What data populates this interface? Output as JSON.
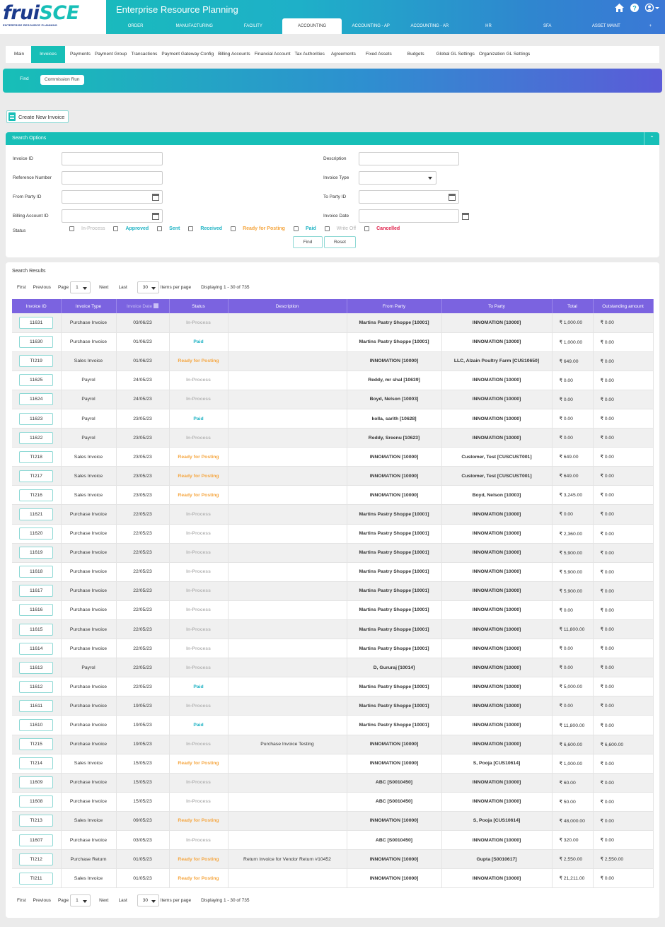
{
  "header": {
    "logo_text": "fruiSCE",
    "logo_sub": "ENTERPRISE RESOURCE PLANNING",
    "app_title": "Enterprise Resource Planning",
    "main_tabs": [
      "ORDER",
      "MANUFACTURING",
      "FACILITY",
      "ACCOUNTING",
      "ACCOUNTING - AP",
      "ACCOUNTING - AR",
      "HR",
      "SFA",
      "ASSET MAINT",
      "+"
    ],
    "active_tab": "ACCOUNTING"
  },
  "subnav": {
    "items": [
      "Main",
      "Invoices",
      "Payments",
      "Payment Group",
      "Transactions",
      "Payment Gateway Config",
      "Billing Accounts",
      "Financial Account",
      "Tax Authorities",
      "Agreements",
      "Fixed Assets",
      "Budgets",
      "Global GL Settings",
      "Organization GL Settings"
    ],
    "active": "Invoices"
  },
  "findbar": {
    "find": "Find",
    "commission_run": "Commission Run"
  },
  "create_invoice": "Create New Invoice",
  "search": {
    "title": "Search Options",
    "labels": {
      "invoice_id": "Invoice ID",
      "reference_number": "Reference Number",
      "from_party_id": "From Party ID",
      "billing_account_id": "Billing Account ID",
      "status": "Status",
      "description": "Description",
      "invoice_type": "Invoice Type",
      "to_party_id": "To Party ID",
      "invoice_date": "Invoice Date"
    },
    "statuses": [
      "In-Process",
      "Approved",
      "Sent",
      "Received",
      "Ready for Posting",
      "Paid",
      "Write Off",
      "Cancelled"
    ],
    "find_button": "Find",
    "reset_button": "Reset"
  },
  "results": {
    "title": "Search Results",
    "pager": {
      "first": "First",
      "previous": "Previous",
      "page_label": "Page",
      "page": "1",
      "next": "Next",
      "last": "Last",
      "per_page": "30",
      "items_per_page": "Items per page",
      "displaying": "Displaying 1 - 30 of 735"
    },
    "columns": [
      "Invoice ID",
      "Invoice Type",
      "Invoice Date",
      "Status",
      "Description",
      "From Party",
      "To Party",
      "Total",
      "Outstanding amount"
    ],
    "rows": [
      {
        "id": "11631",
        "type": "Purchase Invoice",
        "date": "03/06/23",
        "status": "In-Process",
        "desc": "",
        "from": "Martins Pastry Shoppe [10001]",
        "to": "INNOMATION [10000]",
        "total": "₹ 1,000.00",
        "outstanding": "₹ 0.00"
      },
      {
        "id": "11630",
        "type": "Purchase Invoice",
        "date": "01/06/23",
        "status": "Paid",
        "desc": "",
        "from": "Martins Pastry Shoppe [10001]",
        "to": "INNOMATION [10000]",
        "total": "₹ 1,000.00",
        "outstanding": "₹ 0.00"
      },
      {
        "id": "TI219",
        "type": "Sales Invoice",
        "date": "01/06/23",
        "status": "Ready for Posting",
        "desc": "",
        "from": "INNOMATION [10000]",
        "to": "LLC, Alzain Poultry Farm [CUS10650]",
        "total": "₹ 649.00",
        "outstanding": "₹ 0.00"
      },
      {
        "id": "11625",
        "type": "Payrol",
        "date": "24/05/23",
        "status": "In-Process",
        "desc": "",
        "from": "Reddy, mr shal [10639]",
        "to": "INNOMATION [10000]",
        "total": "₹ 0.00",
        "outstanding": "₹ 0.00"
      },
      {
        "id": "11624",
        "type": "Payrol",
        "date": "24/05/23",
        "status": "In-Process",
        "desc": "",
        "from": "Boyd, Nelson [10003]",
        "to": "INNOMATION [10000]",
        "total": "₹ 0.00",
        "outstanding": "₹ 0.00"
      },
      {
        "id": "11623",
        "type": "Payrol",
        "date": "23/05/23",
        "status": "Paid",
        "desc": "",
        "from": "kolla, sarith [10628]",
        "to": "INNOMATION [10000]",
        "total": "₹ 0.00",
        "outstanding": "₹ 0.00"
      },
      {
        "id": "11622",
        "type": "Payrol",
        "date": "23/05/23",
        "status": "In-Process",
        "desc": "",
        "from": "Reddy, Sreenu [10623]",
        "to": "INNOMATION [10000]",
        "total": "₹ 0.00",
        "outstanding": "₹ 0.00"
      },
      {
        "id": "TI218",
        "type": "Sales Invoice",
        "date": "23/05/23",
        "status": "Ready for Posting",
        "desc": "",
        "from": "INNOMATION [10000]",
        "to": "Customer, Test [CUSCUST001]",
        "total": "₹ 649.00",
        "outstanding": "₹ 0.00"
      },
      {
        "id": "TI217",
        "type": "Sales Invoice",
        "date": "23/05/23",
        "status": "Ready for Posting",
        "desc": "",
        "from": "INNOMATION [10000]",
        "to": "Customer, Test [CUSCUST001]",
        "total": "₹ 649.00",
        "outstanding": "₹ 0.00"
      },
      {
        "id": "TI216",
        "type": "Sales Invoice",
        "date": "23/05/23",
        "status": "Ready for Posting",
        "desc": "",
        "from": "INNOMATION [10000]",
        "to": "Boyd, Nelson [10003]",
        "total": "₹ 3,245.00",
        "outstanding": "₹ 0.00"
      },
      {
        "id": "11621",
        "type": "Purchase Invoice",
        "date": "22/05/23",
        "status": "In-Process",
        "desc": "",
        "from": "Martins Pastry Shoppe [10001]",
        "to": "INNOMATION [10000]",
        "total": "₹ 0.00",
        "outstanding": "₹ 0.00"
      },
      {
        "id": "11620",
        "type": "Purchase Invoice",
        "date": "22/05/23",
        "status": "In-Process",
        "desc": "",
        "from": "Martins Pastry Shoppe [10001]",
        "to": "INNOMATION [10000]",
        "total": "₹ 2,360.00",
        "outstanding": "₹ 0.00"
      },
      {
        "id": "11619",
        "type": "Purchase Invoice",
        "date": "22/05/23",
        "status": "In-Process",
        "desc": "",
        "from": "Martins Pastry Shoppe [10001]",
        "to": "INNOMATION [10000]",
        "total": "₹ 5,900.00",
        "outstanding": "₹ 0.00"
      },
      {
        "id": "11618",
        "type": "Purchase Invoice",
        "date": "22/05/23",
        "status": "In-Process",
        "desc": "",
        "from": "Martins Pastry Shoppe [10001]",
        "to": "INNOMATION [10000]",
        "total": "₹ 5,900.00",
        "outstanding": "₹ 0.00"
      },
      {
        "id": "11617",
        "type": "Purchase Invoice",
        "date": "22/05/23",
        "status": "In-Process",
        "desc": "",
        "from": "Martins Pastry Shoppe [10001]",
        "to": "INNOMATION [10000]",
        "total": "₹ 5,900.00",
        "outstanding": "₹ 0.00"
      },
      {
        "id": "11616",
        "type": "Purchase Invoice",
        "date": "22/05/23",
        "status": "In-Process",
        "desc": "",
        "from": "Martins Pastry Shoppe [10001]",
        "to": "INNOMATION [10000]",
        "total": "₹ 0.00",
        "outstanding": "₹ 0.00"
      },
      {
        "id": "11615",
        "type": "Purchase Invoice",
        "date": "22/05/23",
        "status": "In-Process",
        "desc": "",
        "from": "Martins Pastry Shoppe [10001]",
        "to": "INNOMATION [10000]",
        "total": "₹ 11,800.00",
        "outstanding": "₹ 0.00"
      },
      {
        "id": "11614",
        "type": "Purchase Invoice",
        "date": "22/05/23",
        "status": "In-Process",
        "desc": "",
        "from": "Martins Pastry Shoppe [10001]",
        "to": "INNOMATION [10000]",
        "total": "₹ 0.00",
        "outstanding": "₹ 0.00"
      },
      {
        "id": "11613",
        "type": "Payrol",
        "date": "22/05/23",
        "status": "In-Process",
        "desc": "",
        "from": "D, Gururaj [10014]",
        "to": "INNOMATION [10000]",
        "total": "₹ 0.00",
        "outstanding": "₹ 0.00"
      },
      {
        "id": "11612",
        "type": "Purchase Invoice",
        "date": "22/05/23",
        "status": "Paid",
        "desc": "",
        "from": "Martins Pastry Shoppe [10001]",
        "to": "INNOMATION [10000]",
        "total": "₹ 5,000.00",
        "outstanding": "₹ 0.00"
      },
      {
        "id": "11611",
        "type": "Purchase Invoice",
        "date": "19/05/23",
        "status": "In-Process",
        "desc": "",
        "from": "Martins Pastry Shoppe [10001]",
        "to": "INNOMATION [10000]",
        "total": "₹ 0.00",
        "outstanding": "₹ 0.00"
      },
      {
        "id": "11610",
        "type": "Purchase Invoice",
        "date": "19/05/23",
        "status": "Paid",
        "desc": "",
        "from": "Martins Pastry Shoppe [10001]",
        "to": "INNOMATION [10000]",
        "total": "₹ 11,800.00",
        "outstanding": "₹ 0.00"
      },
      {
        "id": "TI215",
        "type": "Purchase Invoice",
        "date": "19/05/23",
        "status": "In-Process",
        "desc": "Purchase Invoice Testing",
        "from": "INNOMATION [10000]",
        "to": "INNOMATION [10000]",
        "total": "₹ 6,600.00",
        "outstanding": "₹ 6,600.00"
      },
      {
        "id": "TI214",
        "type": "Sales Invoice",
        "date": "15/05/23",
        "status": "Ready for Posting",
        "desc": "",
        "from": "INNOMATION [10000]",
        "to": "S, Pooja [CUS10614]",
        "total": "₹ 1,000.00",
        "outstanding": "₹ 0.00"
      },
      {
        "id": "11609",
        "type": "Purchase Invoice",
        "date": "15/05/23",
        "status": "In-Process",
        "desc": "",
        "from": "ABC [S0010450]",
        "to": "INNOMATION [10000]",
        "total": "₹ 60.00",
        "outstanding": "₹ 0.00"
      },
      {
        "id": "11608",
        "type": "Purchase Invoice",
        "date": "15/05/23",
        "status": "In-Process",
        "desc": "",
        "from": "ABC [S0010450]",
        "to": "INNOMATION [10000]",
        "total": "₹ 50.00",
        "outstanding": "₹ 0.00"
      },
      {
        "id": "TI213",
        "type": "Sales Invoice",
        "date": "09/05/23",
        "status": "Ready for Posting",
        "desc": "",
        "from": "INNOMATION [10000]",
        "to": "S, Pooja [CUS10614]",
        "total": "₹ 48,000.00",
        "outstanding": "₹ 0.00"
      },
      {
        "id": "11607",
        "type": "Purchase Invoice",
        "date": "03/05/23",
        "status": "In-Process",
        "desc": "",
        "from": "ABC [S0010450]",
        "to": "INNOMATION [10000]",
        "total": "₹ 320.00",
        "outstanding": "₹ 0.00"
      },
      {
        "id": "TI212",
        "type": "Purchase Return",
        "date": "01/05/23",
        "status": "Ready for Posting",
        "desc": "Return Invoice for Vendor Return #10452",
        "from": "INNOMATION [10000]",
        "to": "Gupta [S0010617]",
        "total": "₹ 2,550.00",
        "outstanding": "₹ 2,550.00"
      },
      {
        "id": "TI211",
        "type": "Sales Invoice",
        "date": "01/05/23",
        "status": "Ready for Posting",
        "desc": "",
        "from": "INNOMATION [10000]",
        "to": "INNOMATION [10000]",
        "total": "₹ 21,211.00",
        "outstanding": "₹ 0.00"
      }
    ]
  }
}
